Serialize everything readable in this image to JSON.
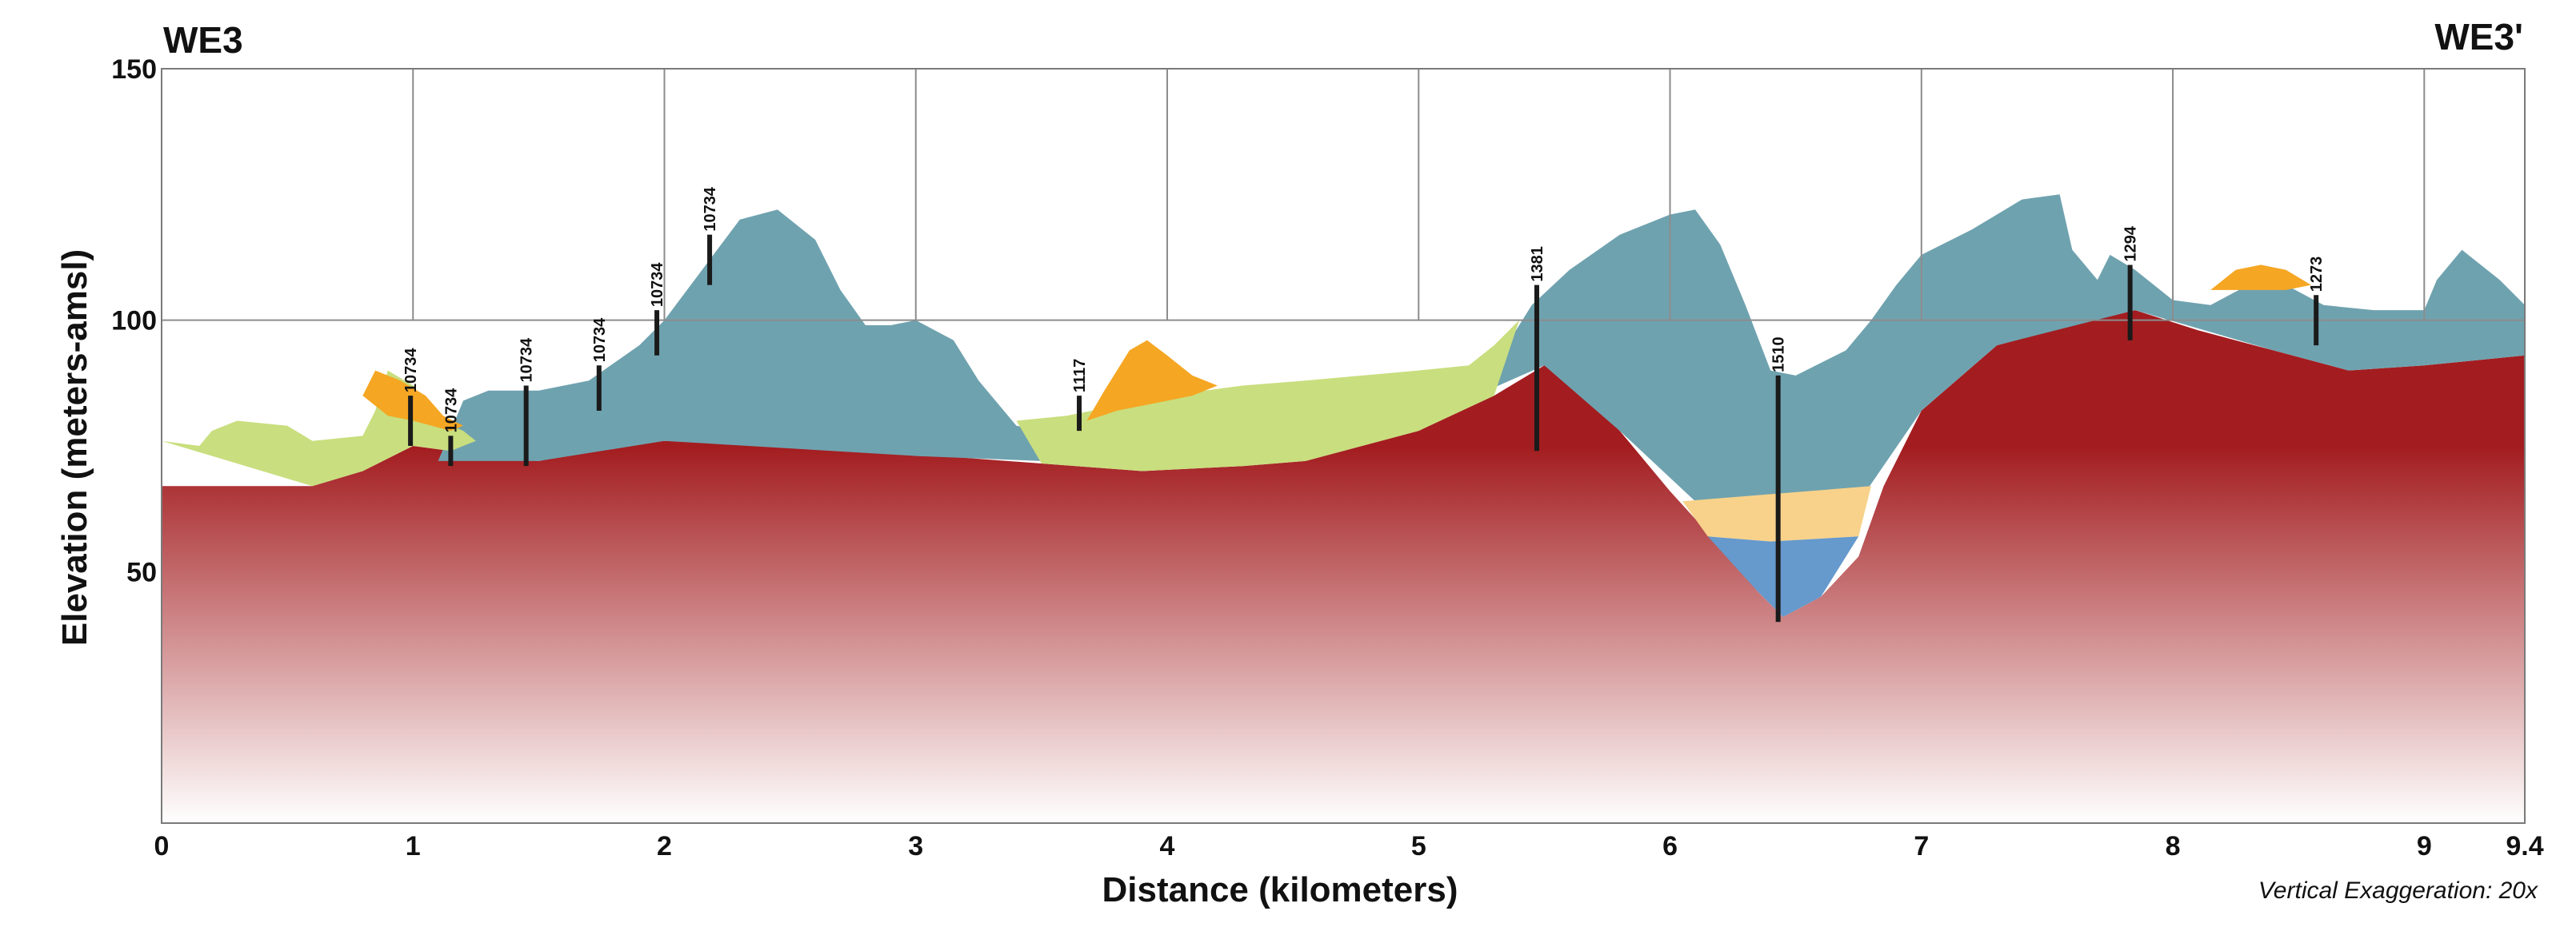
{
  "chart_data": {
    "type": "area",
    "title_left": "WE3",
    "title_right": "WE3'",
    "xlabel": "Distance (kilometers)",
    "ylabel": "Elevation (meters-amsl)",
    "note": "Vertical Exaggeration: 20x",
    "xlim": [
      0,
      9.4
    ],
    "ylim": [
      0,
      150
    ],
    "x_ticks": [
      0,
      1,
      2,
      3,
      4,
      5,
      6,
      7,
      8,
      9,
      9.4
    ],
    "x_tick_labels": [
      "0",
      "1",
      "2",
      "3",
      "4",
      "5",
      "6",
      "7",
      "8",
      "9",
      "9.4"
    ],
    "y_ticks": [
      50,
      100,
      150
    ],
    "y_tick_labels": [
      "50",
      "100",
      "150"
    ],
    "grid": {
      "vertical": true,
      "horizontal_at": [
        100
      ]
    },
    "colors": {
      "bedrock_top": "#a31d20",
      "bedrock_fade": "#ffffff",
      "blue_gray_unit": "#6fa2af",
      "light_green_unit": "#c9de7e",
      "orange_unit": "#f5a623",
      "tan_unit": "#f8d28a",
      "blue_unit": "#6699cc",
      "well_line": "#1a1a1a",
      "grid_line": "#8c8c8c"
    },
    "layers": [
      {
        "name": "bedrock",
        "top": [
          [
            0,
            67
          ],
          [
            0.6,
            67
          ],
          [
            0.8,
            70
          ],
          [
            1.0,
            75
          ],
          [
            1.15,
            74
          ],
          [
            1.5,
            72
          ],
          [
            1.8,
            75
          ],
          [
            2.0,
            76
          ],
          [
            2.35,
            77
          ],
          [
            2.8,
            77
          ],
          [
            3.1,
            73
          ],
          [
            3.5,
            71.5
          ],
          [
            3.9,
            70
          ],
          [
            4.3,
            71
          ],
          [
            4.55,
            72
          ],
          [
            5.0,
            78
          ],
          [
            5.3,
            85
          ],
          [
            5.5,
            91
          ],
          [
            5.6,
            88
          ],
          [
            5.8,
            78
          ],
          [
            6.0,
            66
          ],
          [
            6.2,
            55
          ],
          [
            6.35,
            46
          ],
          [
            6.45,
            41
          ],
          [
            6.6,
            45
          ],
          [
            6.75,
            53
          ],
          [
            6.85,
            67
          ],
          [
            7.0,
            82
          ],
          [
            7.3,
            95
          ],
          [
            7.6,
            99
          ],
          [
            7.85,
            102
          ],
          [
            8.1,
            98
          ],
          [
            8.4,
            94
          ],
          [
            8.7,
            90
          ],
          [
            9.0,
            91
          ],
          [
            9.4,
            93
          ]
        ]
      },
      {
        "name": "blue-gray unit",
        "top": [
          [
            1.1,
            72
          ],
          [
            1.2,
            84
          ],
          [
            1.3,
            86
          ],
          [
            1.5,
            86
          ],
          [
            1.7,
            88
          ],
          [
            1.9,
            95
          ],
          [
            2.0,
            100
          ],
          [
            2.15,
            110
          ],
          [
            2.3,
            120
          ],
          [
            2.45,
            122
          ],
          [
            2.6,
            116
          ],
          [
            2.7,
            106
          ],
          [
            2.8,
            99
          ],
          [
            2.9,
            99
          ],
          [
            3.0,
            100
          ],
          [
            3.15,
            96
          ],
          [
            3.25,
            88
          ],
          [
            3.4,
            79
          ],
          [
            3.6,
            77
          ],
          [
            3.8,
            79
          ],
          [
            4.0,
            82
          ],
          [
            4.3,
            83
          ],
          [
            4.55,
            84
          ],
          [
            5.0,
            86
          ],
          [
            5.2,
            88
          ],
          [
            5.35,
            95
          ],
          [
            5.45,
            103
          ],
          [
            5.6,
            110
          ],
          [
            5.8,
            117
          ],
          [
            6.0,
            121
          ],
          [
            6.1,
            122
          ],
          [
            6.2,
            115
          ],
          [
            6.3,
            103
          ],
          [
            6.4,
            90
          ],
          [
            6.5,
            89
          ],
          [
            6.7,
            94
          ],
          [
            6.8,
            100
          ],
          [
            6.9,
            107
          ],
          [
            7.0,
            113
          ],
          [
            7.2,
            118
          ],
          [
            7.4,
            124
          ],
          [
            7.55,
            125
          ],
          [
            7.6,
            114
          ],
          [
            7.7,
            108
          ],
          [
            7.75,
            113
          ],
          [
            7.85,
            110
          ],
          [
            8.0,
            104
          ],
          [
            8.15,
            103
          ],
          [
            8.3,
            107
          ],
          [
            8.45,
            107
          ],
          [
            8.6,
            103
          ],
          [
            8.8,
            102
          ],
          [
            9.0,
            102
          ],
          [
            9.05,
            108
          ],
          [
            9.15,
            114
          ],
          [
            9.3,
            108
          ],
          [
            9.4,
            103
          ]
        ],
        "base": [
          [
            1.1,
            72
          ],
          [
            1.5,
            72
          ],
          [
            2.0,
            76
          ],
          [
            3.0,
            73
          ],
          [
            3.5,
            72
          ],
          [
            4.0,
            73
          ],
          [
            4.55,
            74
          ],
          [
            5.0,
            80
          ],
          [
            5.5,
            91
          ],
          [
            5.8,
            78
          ],
          [
            6.1,
            64
          ],
          [
            6.3,
            64
          ],
          [
            6.78,
            66
          ],
          [
            7.0,
            82
          ],
          [
            7.3,
            95
          ],
          [
            7.85,
            102
          ],
          [
            8.4,
            94
          ],
          [
            8.7,
            90
          ],
          [
            9.0,
            91
          ],
          [
            9.4,
            93
          ]
        ]
      },
      {
        "name": "light green unit",
        "top": [
          [
            0,
            76
          ],
          [
            0.15,
            75
          ],
          [
            0.2,
            78
          ],
          [
            0.3,
            80
          ],
          [
            0.5,
            79
          ],
          [
            0.6,
            76
          ],
          [
            0.8,
            77
          ],
          [
            0.85,
            82
          ],
          [
            0.9,
            90
          ],
          [
            1.0,
            87
          ],
          [
            1.1,
            80
          ],
          [
            1.2,
            78
          ],
          [
            1.25,
            76
          ]
        ]
      },
      {
        "name": "light green unit",
        "top": [
          [
            3.4,
            80
          ],
          [
            3.6,
            81
          ],
          [
            3.8,
            83
          ],
          [
            4.0,
            85
          ],
          [
            4.3,
            87
          ],
          [
            4.55,
            88
          ],
          [
            5.0,
            90
          ],
          [
            5.2,
            91
          ],
          [
            5.3,
            95
          ],
          [
            5.4,
            100
          ]
        ]
      },
      {
        "name": "orange unit",
        "top": [
          [
            0.8,
            85
          ],
          [
            0.85,
            90
          ],
          [
            0.95,
            88
          ],
          [
            1.05,
            85
          ],
          [
            1.12,
            81
          ],
          [
            1.2,
            79
          ],
          [
            1.15,
            78
          ],
          [
            1.0,
            80
          ],
          [
            0.9,
            81
          ]
        ]
      },
      {
        "name": "orange unit",
        "top": [
          [
            3.68,
            80
          ],
          [
            3.75,
            86
          ],
          [
            3.85,
            94
          ],
          [
            3.92,
            96
          ],
          [
            4.0,
            93
          ],
          [
            4.1,
            89
          ],
          [
            4.2,
            87
          ],
          [
            4.1,
            85
          ],
          [
            3.9,
            83
          ],
          [
            3.8,
            82
          ]
        ]
      },
      {
        "name": "orange unit",
        "top": [
          [
            8.15,
            106
          ],
          [
            8.25,
            110
          ],
          [
            8.35,
            111
          ],
          [
            8.45,
            110
          ],
          [
            8.55,
            107
          ],
          [
            8.45,
            106
          ]
        ]
      },
      {
        "name": "tan unit",
        "top": [
          [
            6.05,
            64
          ],
          [
            6.3,
            65
          ],
          [
            6.8,
            67
          ],
          [
            6.75,
            57
          ],
          [
            6.4,
            56
          ],
          [
            6.15,
            57
          ]
        ]
      },
      {
        "name": "blue unit",
        "top": [
          [
            6.15,
            57
          ],
          [
            6.4,
            56
          ],
          [
            6.75,
            57
          ],
          [
            6.6,
            45
          ],
          [
            6.45,
            41
          ],
          [
            6.35,
            46
          ]
        ]
      }
    ],
    "wells": [
      {
        "label": "10734",
        "x": 0.99,
        "top": 85,
        "bottom": 75
      },
      {
        "label": "10734",
        "x": 1.15,
        "top": 77,
        "bottom": 71
      },
      {
        "label": "10734",
        "x": 1.45,
        "top": 87,
        "bottom": 71
      },
      {
        "label": "10734",
        "x": 1.74,
        "top": 91,
        "bottom": 82
      },
      {
        "label": "10734",
        "x": 1.97,
        "top": 102,
        "bottom": 93
      },
      {
        "label": "10734",
        "x": 2.18,
        "top": 117,
        "bottom": 107
      },
      {
        "label": "1117",
        "x": 3.65,
        "top": 85,
        "bottom": 78
      },
      {
        "label": "1381",
        "x": 5.47,
        "top": 107,
        "bottom": 74
      },
      {
        "label": "1510",
        "x": 6.43,
        "top": 89,
        "bottom": 40
      },
      {
        "label": "1294",
        "x": 7.83,
        "top": 111,
        "bottom": 96
      },
      {
        "label": "1273",
        "x": 8.57,
        "top": 105,
        "bottom": 95
      }
    ]
  }
}
